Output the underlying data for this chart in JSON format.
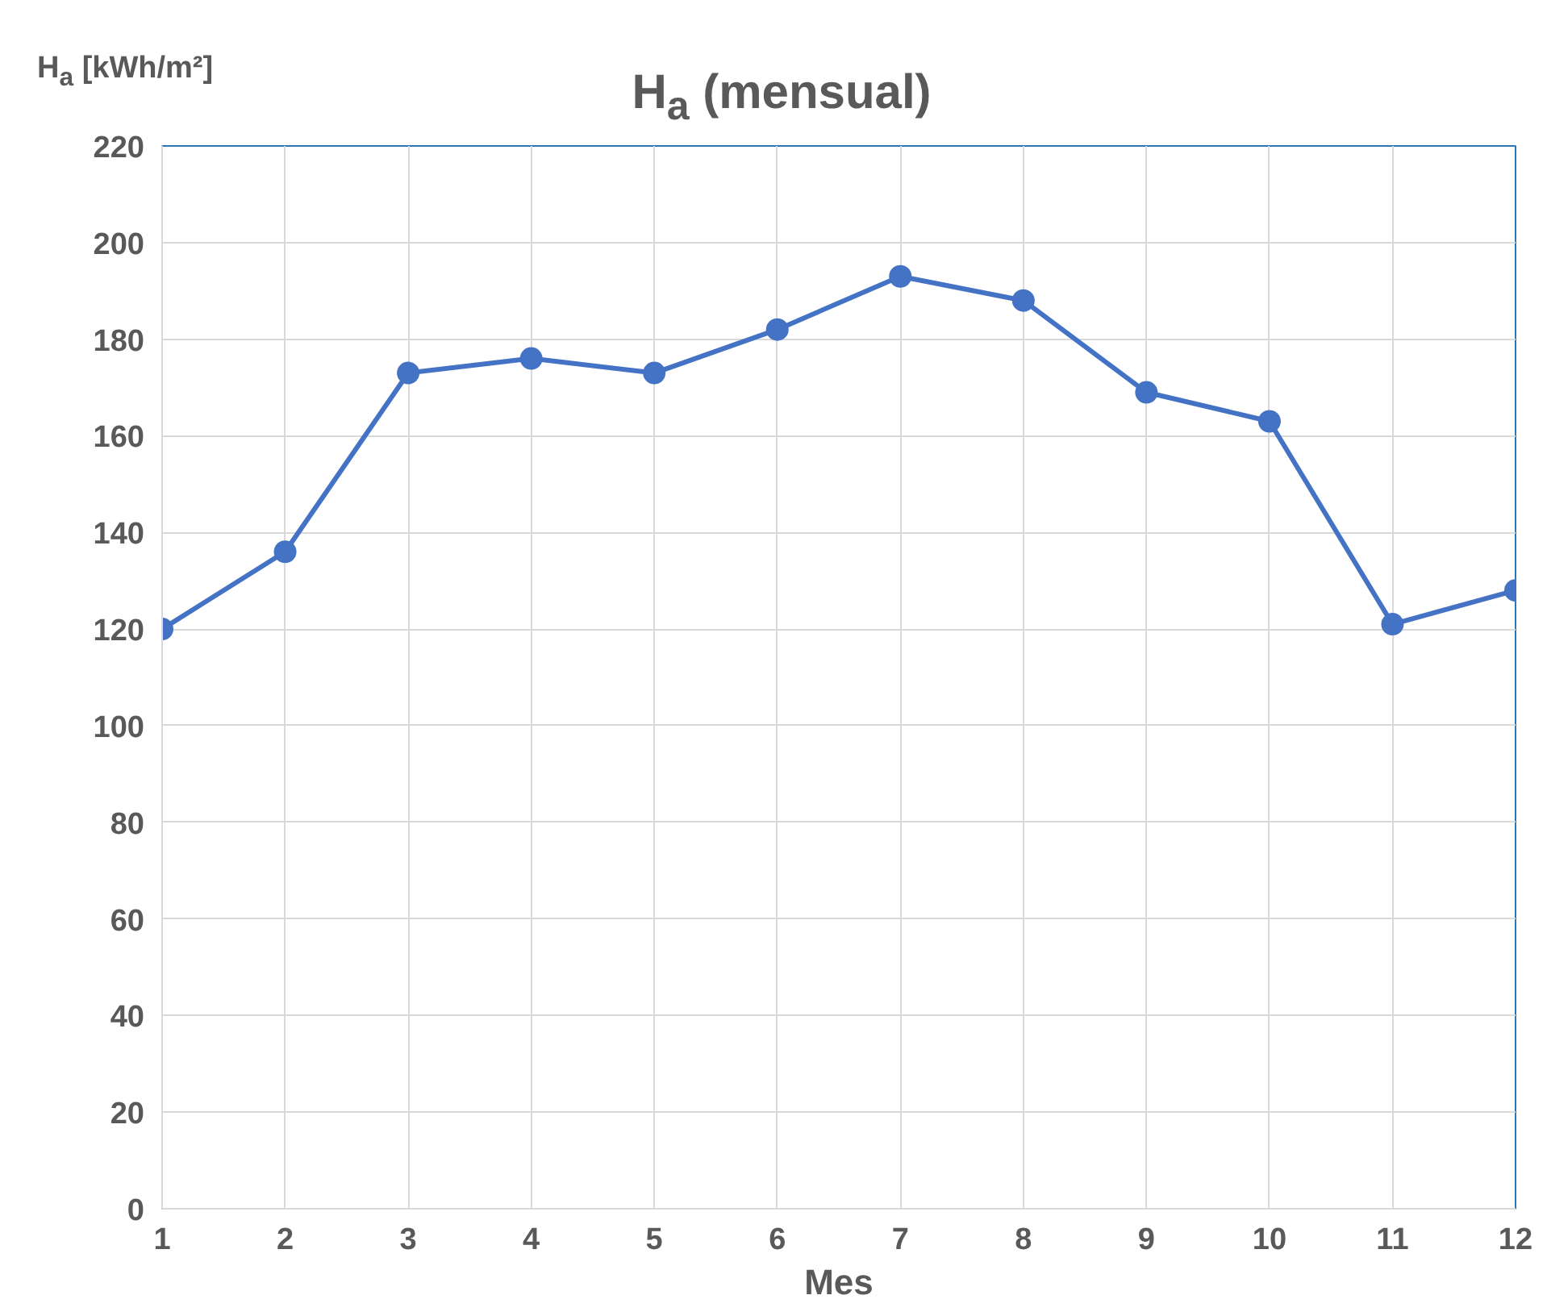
{
  "chart_data": {
    "type": "line",
    "title": "H$_{a}$ (mensual)",
    "ylabel": "H$_{a}$ [kWh/m²]",
    "xlabel": "Mes",
    "x": [
      1,
      2,
      3,
      4,
      5,
      6,
      7,
      8,
      9,
      10,
      11,
      12
    ],
    "series": [
      {
        "color": "#4472c4",
        "values": [
          120,
          136,
          173,
          176,
          173,
          182,
          193,
          188,
          169,
          163,
          121,
          128
        ]
      }
    ],
    "xlim": [
      1,
      12
    ],
    "xticks": [
      1,
      2,
      3,
      4,
      5,
      6,
      7,
      8,
      9,
      10,
      11,
      12
    ],
    "ylim": [
      0,
      220
    ],
    "yticks": [
      0,
      20,
      40,
      60,
      80,
      100,
      120,
      140,
      160,
      180,
      200,
      220
    ],
    "grid": true,
    "marker": "circle",
    "line_style": "solid"
  }
}
